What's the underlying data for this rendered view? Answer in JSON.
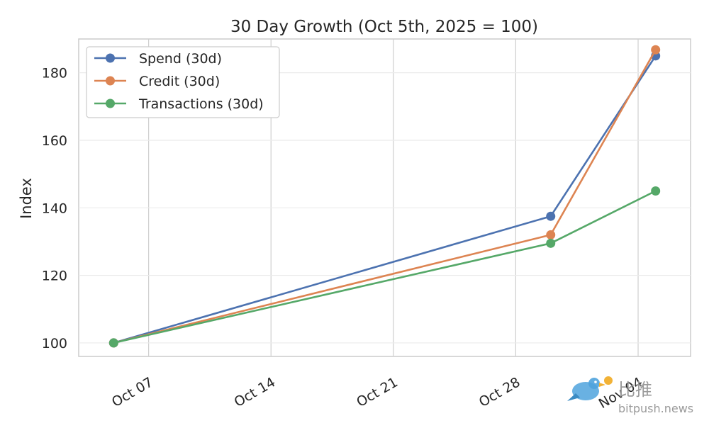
{
  "chart_data": {
    "type": "line",
    "title": "30 Day Growth (Oct 5th, 2025 = 100)",
    "xlabel": "",
    "ylabel": "Index",
    "x": [
      "2025-10-05",
      "2025-10-30",
      "2025-11-05"
    ],
    "x_ticks": [
      "2025-10-07",
      "2025-10-14",
      "2025-10-21",
      "2025-10-28",
      "2025-11-04"
    ],
    "x_tick_labels": [
      "Oct 07",
      "Oct 14",
      "Oct 21",
      "Oct 28",
      "Nov 04"
    ],
    "xlim": [
      "2025-10-03",
      "2025-11-07"
    ],
    "ylim": [
      96,
      190
    ],
    "y_ticks": [
      100,
      120,
      140,
      160,
      180
    ],
    "grid": true,
    "legend_position": "top-left",
    "series": [
      {
        "name": "Spend (30d)",
        "color": "#4c72b0",
        "values": [
          100,
          137.5,
          185
        ]
      },
      {
        "name": "Credit (30d)",
        "color": "#dd8452",
        "values": [
          100,
          132,
          186.8
        ]
      },
      {
        "name": "Transactions (30d)",
        "color": "#55a868",
        "values": [
          100,
          129.5,
          145
        ]
      }
    ]
  },
  "watermark": {
    "logo_icon": "bird-icon",
    "brand_text": "比推",
    "site_text": "bitpush.news"
  }
}
